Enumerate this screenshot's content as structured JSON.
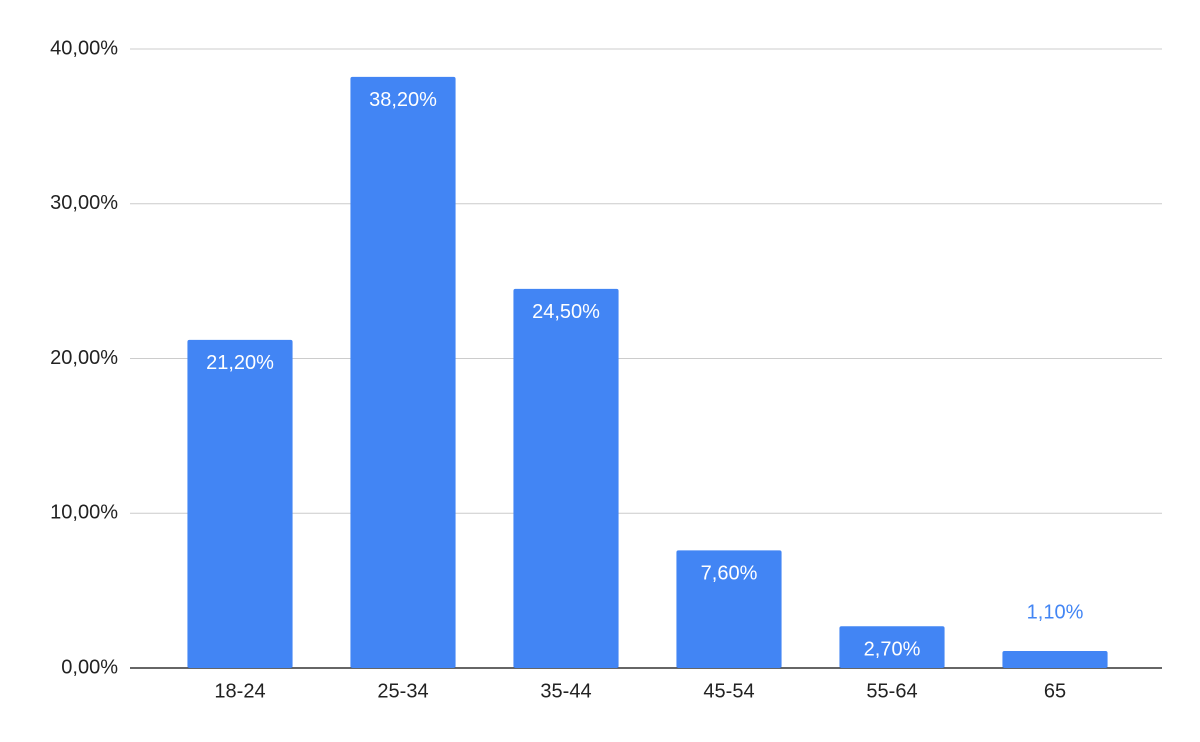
{
  "chart_data": {
    "type": "bar",
    "categories": [
      "18-24",
      "25-34",
      "35-44",
      "45-54",
      "55-64",
      "65"
    ],
    "values": [
      21.2,
      38.2,
      24.5,
      7.6,
      2.7,
      1.1
    ],
    "value_labels": [
      "21,20%",
      "38,20%",
      "24,50%",
      "7,60%",
      "2,70%",
      "1,10%"
    ],
    "color": "#4285f4",
    "ylim": [
      0,
      40
    ],
    "yticks": [
      {
        "value": 0,
        "label": "0,00%"
      },
      {
        "value": 10,
        "label": "10,00%"
      },
      {
        "value": 20,
        "label": "20,00%"
      },
      {
        "value": 30,
        "label": "30,00%"
      },
      {
        "value": 40,
        "label": "40,00%"
      }
    ],
    "grid": true
  }
}
